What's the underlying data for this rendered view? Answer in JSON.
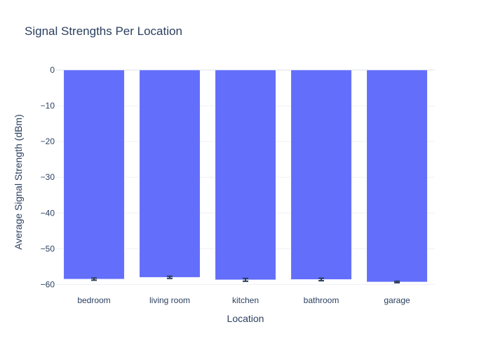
{
  "chart_data": {
    "type": "bar",
    "title": "Signal Strengths Per Location",
    "xlabel": "Location",
    "ylabel": "Average Signal Strength (dBm)",
    "categories": [
      "bedroom",
      "living room",
      "kitchen",
      "bathroom",
      "garage"
    ],
    "values": [
      -58.5,
      -58.0,
      -58.7,
      -58.6,
      -59.3
    ],
    "error": [
      0.3,
      0.3,
      0.4,
      0.35,
      0.2
    ],
    "yticks": [
      0,
      -10,
      -20,
      -30,
      -40,
      -50,
      -60
    ],
    "ylim": [
      -60,
      0
    ],
    "bar_color": "#636efa",
    "grid": true
  }
}
